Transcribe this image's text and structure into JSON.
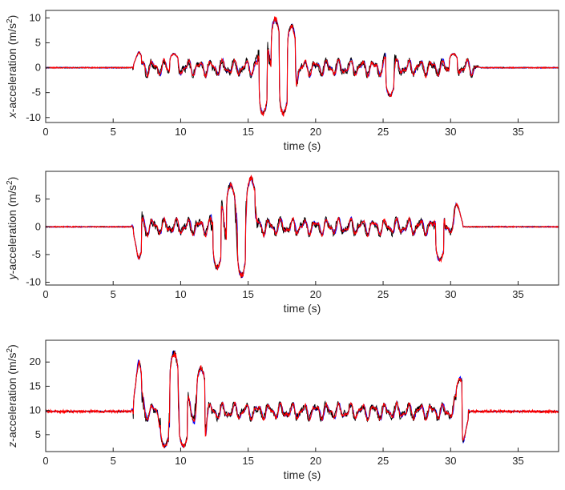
{
  "colors": {
    "blue": "#0000ff",
    "black": "#000000",
    "red": "#ff0000",
    "axis": "#262626"
  },
  "chart_data": [
    {
      "type": "line",
      "xlabel": "time (s)",
      "ylabel_prefix": "x",
      "ylabel_suffix": "-acceleration (m/s",
      "ylabel_sup": "2",
      "ylabel_close": ")",
      "xlim": [
        0,
        38
      ],
      "ylim": [
        -11,
        11.5
      ],
      "xticks": [
        0,
        5,
        10,
        15,
        20,
        25,
        30,
        35
      ],
      "yticks": [
        -10,
        -5,
        0,
        5,
        10
      ],
      "baseline": 0,
      "event_start": 6.3,
      "event_end": 32.2,
      "trace_end": 38,
      "envelope_peaks": [
        {
          "t": 6.8,
          "v": 3.5
        },
        {
          "t": 9.5,
          "v": 3.0
        },
        {
          "t": 16.1,
          "v": -10
        },
        {
          "t": 17.0,
          "v": 10.5
        },
        {
          "t": 17.6,
          "v": -10
        },
        {
          "t": 18.2,
          "v": 9.0
        },
        {
          "t": 25.5,
          "v": -6.0
        },
        {
          "t": 30.2,
          "v": 3.0
        }
      ],
      "series": [
        {
          "color": "blue"
        },
        {
          "color": "black"
        },
        {
          "color": "red"
        }
      ]
    },
    {
      "type": "line",
      "xlabel": "time (s)",
      "ylabel_prefix": "y",
      "ylabel_suffix": "-acceleration (m/s",
      "ylabel_sup": "2",
      "ylabel_close": ")",
      "xlim": [
        0,
        38
      ],
      "ylim": [
        -10.5,
        10
      ],
      "xticks": [
        0,
        5,
        10,
        15,
        20,
        25,
        30,
        35
      ],
      "yticks": [
        -10,
        -5,
        0,
        5
      ],
      "baseline": 0,
      "event_start": 6.3,
      "event_end": 31.0,
      "trace_end": 38,
      "envelope_peaks": [
        {
          "t": 6.8,
          "v": -6.5
        },
        {
          "t": 12.7,
          "v": -8.0
        },
        {
          "t": 13.7,
          "v": 8.2
        },
        {
          "t": 14.5,
          "v": -9.5
        },
        {
          "t": 15.2,
          "v": 9.5
        },
        {
          "t": 29.2,
          "v": -6.5
        },
        {
          "t": 30.6,
          "v": 5.2
        }
      ],
      "series": [
        {
          "color": "blue"
        },
        {
          "color": "black"
        },
        {
          "color": "red"
        }
      ]
    },
    {
      "type": "line",
      "xlabel": "time (s)",
      "ylabel_prefix": "z",
      "ylabel_suffix": "-acceleration (m/s",
      "ylabel_sup": "2",
      "ylabel_close": ")",
      "xlim": [
        0,
        38
      ],
      "ylim": [
        1.5,
        24.5
      ],
      "xticks": [
        0,
        5,
        10,
        15,
        20,
        25,
        30,
        35
      ],
      "yticks": [
        5,
        10,
        15,
        20
      ],
      "baseline": 9.8,
      "event_start": 6.3,
      "event_end": 31.5,
      "trace_end": 38,
      "envelope_peaks": [
        {
          "t": 6.8,
          "v": 21.5
        },
        {
          "t": 8.8,
          "v": 2.0
        },
        {
          "t": 9.5,
          "v": 23.0
        },
        {
          "t": 10.2,
          "v": 2.0
        },
        {
          "t": 11.5,
          "v": 19.5
        },
        {
          "t": 30.7,
          "v": 17.0
        },
        {
          "t": 31.0,
          "v": 2.5
        }
      ],
      "series": [
        {
          "color": "blue"
        },
        {
          "color": "black"
        },
        {
          "color": "red"
        }
      ]
    }
  ]
}
